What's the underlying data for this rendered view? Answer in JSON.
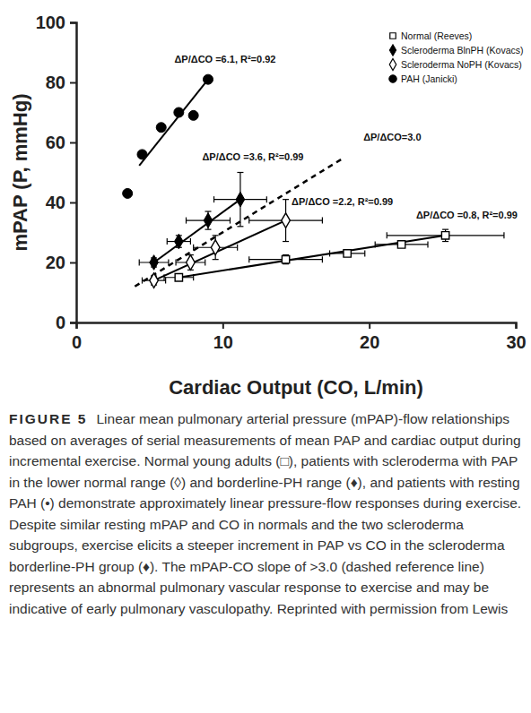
{
  "chart_data": {
    "type": "scatter",
    "x_label": "Cardiac Output (CO, L/min)",
    "y_label": "mPAP (P, mmHg)",
    "xlim": [
      0,
      30
    ],
    "ylim": [
      0,
      100
    ],
    "xticks": [
      0,
      10,
      20,
      30
    ],
    "yticks": [
      0,
      20,
      40,
      60,
      80,
      100
    ],
    "legend": "upper right",
    "series": [
      {
        "name": "Normal (Reeves)",
        "color": "#000000",
        "marker": "square-open",
        "line_style": "solid",
        "x": [
          7.0,
          14.3,
          18.5,
          22.2,
          25.2
        ],
        "values": [
          15,
          21,
          23,
          26,
          29
        ],
        "x_error": [
          1,
          2.5,
          1.2,
          1.8,
          4
        ],
        "y_error": [
          1,
          1.5,
          1,
          1,
          2
        ],
        "fit": {
          "x": [
            7.0,
            25.2
          ],
          "values": [
            15,
            29
          ]
        }
      },
      {
        "name": "Scleroderma BlnPH (Kovacs)",
        "color": "#000000",
        "marker": "diamond",
        "line_style": "solid",
        "x": [
          5.3,
          7.0,
          9.0,
          11.2
        ],
        "values": [
          20,
          27,
          34,
          41
        ],
        "x_error": [
          1,
          0.8,
          1.5,
          1.8
        ],
        "y_error": [
          1.5,
          2,
          3,
          9
        ],
        "fit": {
          "x": [
            5.3,
            11.2
          ],
          "values": [
            20,
            41
          ]
        }
      },
      {
        "name": "Scleroderma NoPH (Kovacs)",
        "color": "#000000",
        "marker": "diamond-open",
        "line_style": "solid",
        "x": [
          5.3,
          7.8,
          9.5,
          14.3
        ],
        "values": [
          14,
          20,
          25,
          34
        ],
        "x_error": [
          0.8,
          1,
          1.5,
          2.5
        ],
        "y_error": [
          1.5,
          2.5,
          4,
          7
        ],
        "fit": {
          "x": [
            5.3,
            14.3
          ],
          "values": [
            14,
            34
          ]
        }
      },
      {
        "name": "PAH (Janicki)",
        "color": "#000000",
        "marker": "circle",
        "line_style": "solid",
        "x": [
          3.5,
          4.5,
          5.8,
          7.0,
          8.0,
          9.0
        ],
        "values": [
          43,
          56,
          65,
          70,
          69,
          81
        ],
        "fit": {
          "x": [
            4.3,
            9.0
          ],
          "values": [
            52.3,
            81
          ]
        }
      }
    ],
    "reference_line": {
      "x": [
        4,
        18.3
      ],
      "values": [
        12,
        55
      ],
      "line_style": "dashed",
      "color": "#000000"
    },
    "annotations": [
      {
        "text": "ΔP/ΔCO =6.1, R²=0.92",
        "x": 6.7,
        "y": 86.5
      },
      {
        "text": "ΔP/ΔCO=3.0",
        "x": 19.6,
        "y": 60.6
      },
      {
        "text": "ΔP/ΔCO =3.6, R²=0.99",
        "x": 8.6,
        "y": 54
      },
      {
        "text": "ΔP/ΔCO =2.2, R²=0.99",
        "x": 14.7,
        "y": 39
      },
      {
        "text": "ΔP/ΔCO =0.8, R²=0.99",
        "x": 23.2,
        "y": 34.6
      }
    ],
    "caption": {
      "label": "FIGURE 5",
      "text": "Linear mean pulmonary arterial pressure (mPAP)-flow relationships based on averages of serial measurements of mean PAP and cardiac output during incremental exercise. Normal young adults (□), patients with scleroderma with PAP in the lower normal range (◊) and borderline-PH range (♦), and patients with resting PAH (•) demonstrate approximately linear pressure-flow responses during exercise. Despite similar resting mPAP and CO in normals and the two scleroderma subgroups, exercise elicits a steeper increment in PAP vs CO in the scleroderma borderline-PH group (♦). The mPAP-CO slope of >3.0 (dashed reference line) represents an abnormal pulmonary vascular response to exercise and may be indicative of early pulmonary vasculopathy. Reprinted with permission from Lewis"
    }
  }
}
